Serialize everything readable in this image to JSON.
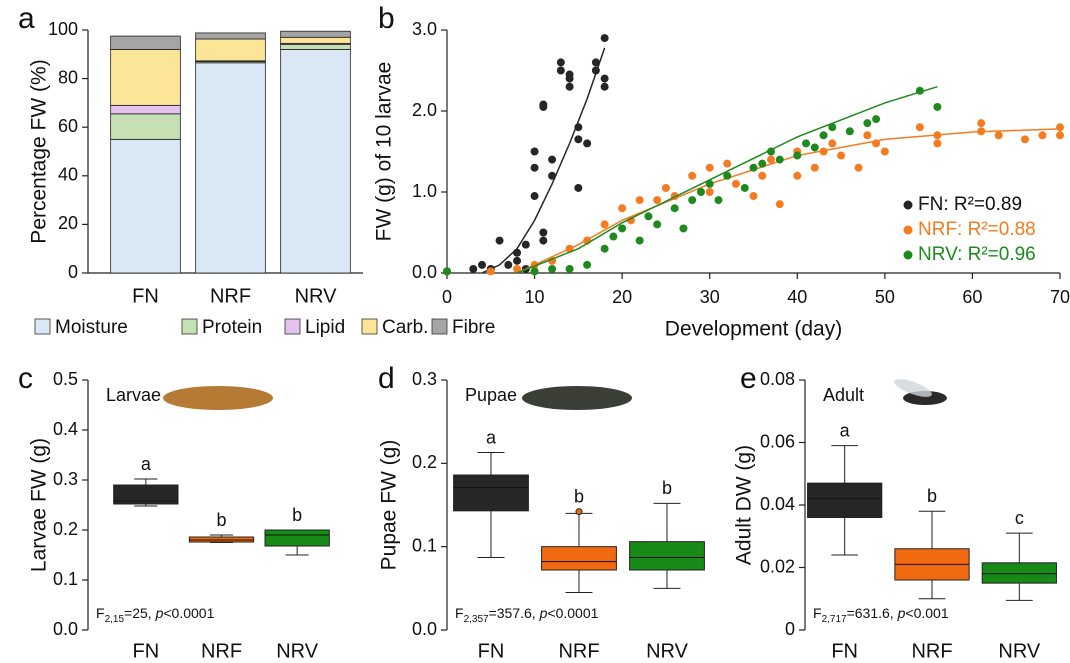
{
  "chart_data": [
    {
      "type": "bar",
      "stacked": true,
      "panel": "a",
      "ylabel": "Percentage FW (%)",
      "categories": [
        "FN",
        "NRF",
        "NRV"
      ],
      "ylim": [
        0,
        100
      ],
      "yticks": [
        0,
        20,
        40,
        60,
        80,
        100
      ],
      "series": [
        {
          "name": "Moisture",
          "color": "#dae8f5",
          "values": [
            55,
            86.5,
            92
          ]
        },
        {
          "name": "Protein",
          "color": "#c5e0b3",
          "values": [
            10.5,
            0.5,
            2
          ]
        },
        {
          "name": "Lipid",
          "color": "#e4c2ee",
          "values": [
            3.5,
            0.3,
            0.5
          ]
        },
        {
          "name": "Carb.",
          "color": "#fde598",
          "values": [
            23,
            9,
            2.5
          ]
        },
        {
          "name": "Fibre",
          "color": "#a5a5a5",
          "values": [
            5.5,
            2.5,
            2.5
          ]
        }
      ]
    },
    {
      "type": "scatter",
      "panel": "b",
      "xlabel": "Development (day)",
      "ylabel": "FW (g) of 10 larvae",
      "xlim": [
        0,
        70
      ],
      "xticks": [
        0,
        10,
        20,
        30,
        40,
        50,
        60,
        70
      ],
      "ylim": [
        0,
        3
      ],
      "yticks": [
        {
          "value": 0,
          "label": "0.0"
        },
        {
          "value": 1,
          "label": "1.0"
        },
        {
          "value": 2,
          "label": "2.0"
        },
        {
          "value": 3,
          "label": "3.0"
        }
      ],
      "series": [
        {
          "name": "FN: R²=0.89",
          "color": "#262626",
          "x": [
            0,
            3,
            4,
            5,
            6,
            7,
            8,
            8,
            9,
            9,
            10,
            10,
            10,
            11,
            11,
            11,
            11,
            12,
            12,
            13,
            13,
            14,
            14,
            14,
            15,
            15,
            15,
            16,
            17,
            17,
            18,
            18,
            18
          ],
          "y": [
            0.02,
            0.05,
            0.1,
            0.05,
            0.4,
            0.1,
            0.25,
            0.15,
            0.35,
            0.05,
            0.95,
            1.3,
            1.5,
            2.05,
            2.08,
            0.5,
            0.4,
            1.4,
            1.2,
            2.6,
            2.5,
            2.45,
            2.3,
            2.4,
            1.05,
            1.65,
            1.8,
            1.6,
            2.5,
            2.6,
            2.9,
            2.4,
            2.3
          ],
          "fit": {
            "x": [
              4,
              6,
              8,
              10,
              12,
              14,
              16,
              18
            ],
            "y": [
              0,
              0.1,
              0.3,
              0.65,
              1.1,
              1.6,
              2.15,
              2.78
            ]
          }
        },
        {
          "name": "NRF: R²=0.88",
          "color": "#f47b20",
          "x": [
            5,
            8,
            10,
            12,
            14,
            16,
            18,
            20,
            21,
            22,
            24,
            25,
            26,
            28,
            30,
            30,
            32,
            33,
            35,
            36,
            37,
            38,
            40,
            40,
            42,
            43,
            44,
            45,
            47,
            48,
            49,
            50,
            54,
            56,
            56,
            61,
            61,
            63,
            66,
            68,
            70,
            70
          ],
          "y": [
            0.02,
            0.05,
            0.1,
            0.15,
            0.3,
            0.4,
            0.6,
            0.8,
            0.65,
            0.9,
            0.9,
            1.05,
            0.95,
            1.2,
            1.3,
            1.0,
            1.35,
            1.1,
            0.95,
            1.2,
            1.4,
            0.85,
            1.2,
            1.5,
            1.3,
            1.5,
            1.6,
            1.45,
            1.3,
            1.7,
            1.6,
            1.5,
            1.8,
            1.6,
            1.7,
            1.85,
            1.75,
            1.7,
            1.65,
            1.7,
            1.8,
            1.7
          ],
          "fit": {
            "x": [
              8,
              15,
              20,
              30,
              40,
              50,
              60,
              70
            ],
            "y": [
              0,
              0.35,
              0.65,
              1.1,
              1.45,
              1.65,
              1.74,
              1.78
            ]
          }
        },
        {
          "name": "NRV: R²=0.96",
          "color": "#1e8a1e",
          "x": [
            0,
            10,
            12,
            14,
            16,
            18,
            19,
            20,
            22,
            23,
            24,
            26,
            27,
            28,
            29,
            30,
            31,
            32,
            34,
            35,
            36,
            37,
            38,
            40,
            41,
            42,
            43,
            44,
            46,
            48,
            49,
            54,
            56
          ],
          "y": [
            0.02,
            0.02,
            0.05,
            0.05,
            0.1,
            0.3,
            0.45,
            0.55,
            0.4,
            0.7,
            0.6,
            0.8,
            0.55,
            0.9,
            1.0,
            1.1,
            0.9,
            1.2,
            1.05,
            1.3,
            1.35,
            1.5,
            1.4,
            1.45,
            1.6,
            1.55,
            1.7,
            1.8,
            1.75,
            1.85,
            1.9,
            2.25,
            2.05
          ],
          "fit": {
            "x": [
              8,
              15,
              20,
              30,
              40,
              50,
              56
            ],
            "y": [
              0,
              0.3,
              0.62,
              1.15,
              1.68,
              2.1,
              2.3
            ]
          }
        }
      ]
    },
    {
      "type": "box",
      "panel": "c",
      "label": "Larvae",
      "ylabel": "Larvae FW (g)",
      "ylim": [
        0,
        0.5
      ],
      "yticks": [
        {
          "value": 0,
          "label": "0.0"
        },
        0.1,
        0.2,
        0.3,
        0.4,
        0.5
      ],
      "categories": [
        "FN",
        "NRF",
        "NRV"
      ],
      "boxes": [
        {
          "whislo": 0.248,
          "q1": 0.252,
          "med": 0.258,
          "q3": 0.29,
          "whishi": 0.302,
          "color": "#262626",
          "letter": "a"
        },
        {
          "whislo": 0.175,
          "q1": 0.176,
          "med": 0.18,
          "q3": 0.186,
          "whishi": 0.19,
          "color": "#f26a10",
          "letter": "b"
        },
        {
          "whislo": 0.15,
          "q1": 0.168,
          "med": 0.19,
          "q3": 0.2,
          "whishi": 0.2,
          "color": "#178a17",
          "letter": "b"
        }
      ],
      "annotation": [
        "F",
        "2,15",
        "=25, ",
        "p",
        "<0.0001"
      ]
    },
    {
      "type": "box",
      "panel": "d",
      "label": "Pupae",
      "ylabel": "Pupae FW (g)",
      "ylim": [
        0,
        0.3
      ],
      "yticks": [
        {
          "value": 0,
          "label": "0.0"
        },
        0.1,
        0.2,
        0.3
      ],
      "categories": [
        "FN",
        "NRF",
        "NRV"
      ],
      "boxes": [
        {
          "whislo": 0.087,
          "q1": 0.143,
          "med": 0.171,
          "q3": 0.186,
          "whishi": 0.213,
          "color": "#262626",
          "letter": "a"
        },
        {
          "whislo": 0.045,
          "q1": 0.072,
          "med": 0.082,
          "q3": 0.1,
          "whishi": 0.14,
          "color": "#f26a10",
          "letter": "b",
          "fliers": [
            0.142
          ]
        },
        {
          "whislo": 0.05,
          "q1": 0.072,
          "med": 0.087,
          "q3": 0.106,
          "whishi": 0.152,
          "color": "#178a17",
          "letter": "b"
        }
      ],
      "annotation": [
        "F",
        "2,357",
        "=357.6, ",
        "p",
        "<0.0001"
      ]
    },
    {
      "type": "box",
      "panel": "e",
      "label": "Adult",
      "ylabel": "Adult DW (g)",
      "ylim": [
        0,
        0.08
      ],
      "yticks": [
        0,
        0.02,
        0.04,
        0.06,
        0.08
      ],
      "categories": [
        "FN",
        "NRF",
        "NRV"
      ],
      "boxes": [
        {
          "whislo": 0.024,
          "q1": 0.036,
          "med": 0.042,
          "q3": 0.047,
          "whishi": 0.059,
          "color": "#262626",
          "letter": "a"
        },
        {
          "whislo": 0.01,
          "q1": 0.016,
          "med": 0.021,
          "q3": 0.026,
          "whishi": 0.038,
          "color": "#f26a10",
          "letter": "b"
        },
        {
          "whislo": 0.0095,
          "q1": 0.015,
          "med": 0.018,
          "q3": 0.0215,
          "whishi": 0.031,
          "color": "#178a17",
          "letter": "c"
        }
      ],
      "annotation": [
        "F",
        "2,717",
        "=631.6, ",
        "p",
        "<0.001"
      ]
    }
  ]
}
